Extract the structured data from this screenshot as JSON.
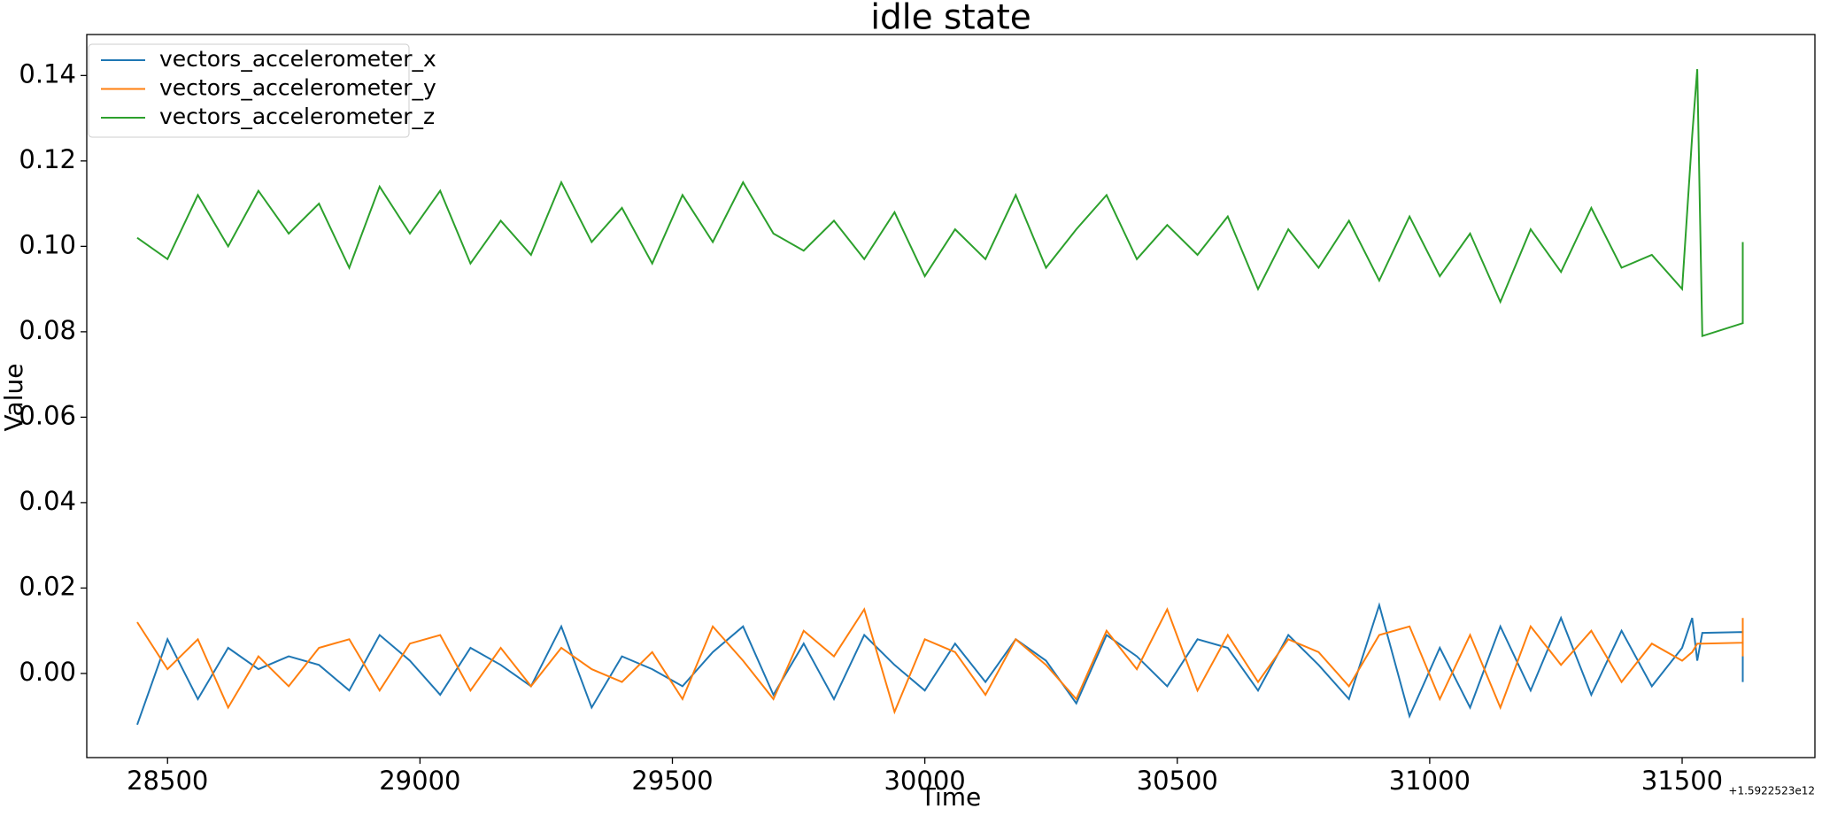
{
  "chart_data": {
    "type": "line",
    "title": "idle state",
    "x_label": "Time",
    "y_label": "Value",
    "x_offset_label": "+1.5922523e12",
    "x": [
      28440,
      28500,
      28560,
      28620,
      28680,
      28740,
      28800,
      28860,
      28920,
      28980,
      29040,
      29100,
      29160,
      29220,
      29280,
      29340,
      29400,
      29460,
      29520,
      29580,
      29640,
      29700,
      29760,
      29820,
      29880,
      29940,
      30000,
      30060,
      30120,
      30180,
      30240,
      30300,
      30360,
      30420,
      30480,
      30540,
      30600,
      30660,
      30720,
      30780,
      30840,
      30900,
      30960,
      31020,
      31080,
      31140,
      31200,
      31260,
      31320,
      31380,
      31440,
      31500,
      31520,
      31530,
      31540,
      31620,
      31620,
      31620
    ],
    "series": [
      {
        "name": "vectors_accelerometer_x",
        "color": "#1f77b4",
        "values": [
          -0.012,
          0.008,
          -0.006,
          0.006,
          0.001,
          0.004,
          0.002,
          -0.004,
          0.009,
          0.003,
          -0.005,
          0.006,
          0.002,
          -0.003,
          0.011,
          -0.008,
          0.004,
          0.001,
          -0.003,
          0.005,
          0.011,
          -0.005,
          0.007,
          -0.006,
          0.009,
          0.002,
          -0.004,
          0.007,
          -0.002,
          0.008,
          0.003,
          -0.007,
          0.009,
          0.004,
          -0.003,
          0.008,
          0.006,
          -0.004,
          0.009,
          0.002,
          -0.006,
          0.016,
          -0.01,
          0.006,
          -0.008,
          0.011,
          -0.004,
          0.013,
          -0.005,
          0.01,
          -0.003,
          0.006,
          0.013,
          0.003,
          0.0095,
          0.0097,
          0.002,
          -0.002
        ]
      },
      {
        "name": "vectors_accelerometer_y",
        "color": "#ff7f0e",
        "values": [
          0.012,
          0.001,
          0.008,
          -0.008,
          0.004,
          -0.003,
          0.006,
          0.008,
          -0.004,
          0.007,
          0.009,
          -0.004,
          0.006,
          -0.003,
          0.006,
          0.001,
          -0.002,
          0.005,
          -0.006,
          0.011,
          0.003,
          -0.006,
          0.01,
          0.004,
          0.015,
          -0.009,
          0.008,
          0.005,
          -0.005,
          0.008,
          0.002,
          -0.006,
          0.01,
          0.001,
          0.015,
          -0.004,
          0.009,
          -0.002,
          0.008,
          0.005,
          -0.003,
          0.009,
          0.011,
          -0.006,
          0.009,
          -0.008,
          0.011,
          0.002,
          0.01,
          -0.002,
          0.007,
          0.003,
          0.005,
          0.007,
          0.007,
          0.0072,
          0.013,
          0.004
        ]
      },
      {
        "name": "vectors_accelerometer_z",
        "color": "#2ca02c",
        "values": [
          0.102,
          0.097,
          0.112,
          0.1,
          0.113,
          0.103,
          0.11,
          0.095,
          0.114,
          0.103,
          0.113,
          0.096,
          0.106,
          0.098,
          0.115,
          0.101,
          0.109,
          0.096,
          0.112,
          0.101,
          0.115,
          0.103,
          0.099,
          0.106,
          0.097,
          0.108,
          0.093,
          0.104,
          0.097,
          0.112,
          0.095,
          0.104,
          0.112,
          0.097,
          0.105,
          0.098,
          0.107,
          0.09,
          0.104,
          0.095,
          0.106,
          0.092,
          0.107,
          0.093,
          0.103,
          0.087,
          0.104,
          0.094,
          0.109,
          0.095,
          0.098,
          0.09,
          0.126,
          0.1415,
          0.079,
          0.082,
          0.101,
          0.092
        ]
      }
    ],
    "xlim": [
      28340,
      31763
    ],
    "ylim": [
      -0.0197,
      0.1496
    ],
    "xticks": [
      28500,
      29000,
      29500,
      30000,
      30500,
      31000,
      31500
    ],
    "yticks": [
      {
        "value": 0,
        "label": "0.00"
      },
      {
        "value": 0.02,
        "label": "0.02"
      },
      {
        "value": 0.04,
        "label": "0.04"
      },
      {
        "value": 0.06,
        "label": "0.06"
      },
      {
        "value": 0.08,
        "label": "0.08"
      },
      {
        "value": 0.1,
        "label": "0.10"
      },
      {
        "value": 0.12,
        "label": "0.12"
      },
      {
        "value": 0.14,
        "label": "0.14"
      }
    ],
    "grid": false,
    "legend": "upper left"
  }
}
